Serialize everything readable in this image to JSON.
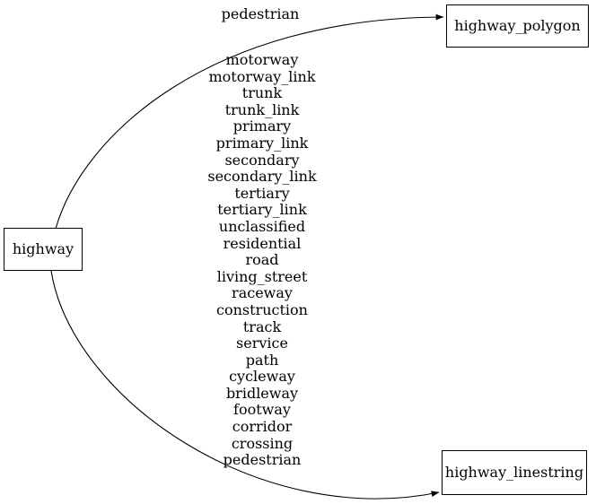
{
  "diagram": {
    "type": "directed-graph",
    "colors": {
      "background": "#ffffff",
      "line": "#000000",
      "text": "#000000"
    },
    "nodes": [
      {
        "id": "highway",
        "label": "highway"
      },
      {
        "id": "highway_polygon",
        "label": "highway_polygon"
      },
      {
        "id": "highway_linestring",
        "label": "highway_linestring"
      }
    ],
    "edges": [
      {
        "from": "highway",
        "to": "highway_polygon",
        "labels": [
          "pedestrian"
        ]
      },
      {
        "from": "highway",
        "to": "highway_linestring",
        "labels": [
          "motorway",
          "motorway_link",
          "trunk",
          "trunk_link",
          "primary",
          "primary_link",
          "secondary",
          "secondary_link",
          "tertiary",
          "tertiary_link",
          "unclassified",
          "residential",
          "road",
          "living_street",
          "raceway",
          "construction",
          "track",
          "service",
          "path",
          "cycleway",
          "bridleway",
          "footway",
          "corridor",
          "crossing",
          "pedestrian"
        ]
      }
    ]
  }
}
